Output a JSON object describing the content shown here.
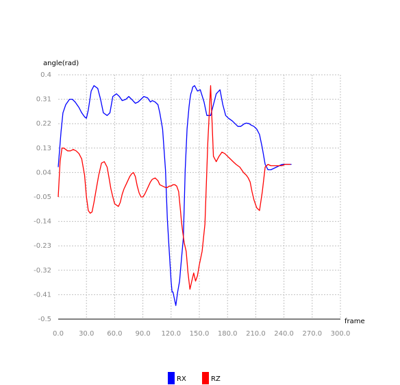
{
  "chart_data": {
    "type": "line",
    "xlabel": "frame",
    "ylabel": "angle(rad)",
    "xlim": [
      0,
      300
    ],
    "ylim": [
      -0.5,
      0.4
    ],
    "xticks": [
      "0.0",
      "30.0",
      "60.0",
      "90.0",
      "120.0",
      "150.0",
      "180.0",
      "210.0",
      "240.0",
      "270.0",
      "300.0"
    ],
    "yticks": [
      "0.4",
      "0.31",
      "0.22",
      "0.13",
      "0.04",
      "-0.05",
      "-0.14",
      "-0.23",
      "-0.32",
      "-0.41",
      "-0.5"
    ],
    "grid": true,
    "legend_position": "bottom-center",
    "series": [
      {
        "name": "RX",
        "color": "#0000ff",
        "x": [
          0,
          3,
          5,
          8,
          12,
          15,
          18,
          22,
          25,
          28,
          30,
          32,
          35,
          38,
          42,
          45,
          48,
          52,
          55,
          58,
          62,
          65,
          68,
          72,
          75,
          78,
          82,
          85,
          88,
          91,
          95,
          98,
          100,
          103,
          106,
          108,
          111,
          114,
          116,
          118,
          120,
          121,
          122,
          125,
          127,
          129,
          130,
          131,
          133,
          135,
          137,
          139,
          140,
          141,
          142,
          143,
          145,
          148,
          151,
          155,
          158,
          162,
          165,
          168,
          172,
          175,
          178,
          181,
          185,
          188,
          191,
          194,
          196,
          198,
          200,
          203,
          205,
          208,
          211,
          214,
          217,
          220,
          223,
          226,
          229,
          232,
          235,
          238,
          240,
          242,
          245,
          248
        ],
        "y": [
          0.06,
          0.19,
          0.26,
          0.29,
          0.31,
          0.31,
          0.3,
          0.28,
          0.26,
          0.245,
          0.24,
          0.27,
          0.34,
          0.36,
          0.35,
          0.31,
          0.26,
          0.25,
          0.26,
          0.32,
          0.33,
          0.32,
          0.305,
          0.31,
          0.32,
          0.31,
          0.295,
          0.3,
          0.31,
          0.32,
          0.315,
          0.3,
          0.305,
          0.3,
          0.29,
          0.26,
          0.2,
          0.05,
          -0.13,
          -0.25,
          -0.36,
          -0.4,
          -0.4,
          -0.45,
          -0.4,
          -0.36,
          -0.32,
          -0.28,
          -0.2,
          0.05,
          0.2,
          0.28,
          0.31,
          0.33,
          0.34,
          0.355,
          0.36,
          0.34,
          0.345,
          0.3,
          0.25,
          0.25,
          0.29,
          0.33,
          0.345,
          0.29,
          0.25,
          0.24,
          0.23,
          0.22,
          0.21,
          0.21,
          0.215,
          0.22,
          0.222,
          0.22,
          0.215,
          0.21,
          0.2,
          0.18,
          0.13,
          0.07,
          0.05,
          0.05,
          0.055,
          0.06,
          0.065,
          0.07,
          0.07,
          0.07,
          0.07,
          0.07
        ]
      },
      {
        "name": "RZ",
        "color": "#ff0000",
        "x": [
          0,
          2,
          4,
          6,
          8,
          10,
          13,
          16,
          19,
          22,
          25,
          28,
          30,
          32,
          34,
          36,
          38,
          40,
          43,
          46,
          49,
          52,
          54,
          56,
          58,
          60,
          62,
          64,
          66,
          68,
          70,
          72,
          74,
          76,
          78,
          80,
          82,
          84,
          86,
          88,
          90,
          92,
          94,
          96,
          98,
          100,
          103,
          106,
          108,
          111,
          114,
          116,
          118,
          120,
          122,
          124,
          126,
          128,
          130,
          131,
          132,
          134,
          136,
          138,
          140,
          142,
          144,
          146,
          148,
          150,
          153,
          156,
          159,
          162,
          165,
          168,
          171,
          174,
          177,
          180,
          183,
          186,
          189,
          191,
          193,
          195,
          197,
          200,
          202,
          204,
          206,
          208,
          211,
          214,
          217,
          220,
          223,
          226,
          229,
          232,
          235,
          238,
          241,
          244,
          247
        ],
        "y": [
          -0.05,
          0.08,
          0.13,
          0.13,
          0.125,
          0.12,
          0.12,
          0.125,
          0.12,
          0.11,
          0.09,
          0.03,
          -0.05,
          -0.1,
          -0.11,
          -0.105,
          -0.07,
          -0.03,
          0.03,
          0.075,
          0.08,
          0.06,
          0.02,
          -0.02,
          -0.05,
          -0.075,
          -0.08,
          -0.085,
          -0.07,
          -0.04,
          -0.02,
          -0.005,
          0.01,
          0.025,
          0.035,
          0.04,
          0.025,
          -0.01,
          -0.035,
          -0.05,
          -0.05,
          -0.04,
          -0.025,
          -0.01,
          0.005,
          0.015,
          0.02,
          0.01,
          -0.005,
          -0.01,
          -0.015,
          -0.015,
          -0.01,
          -0.01,
          -0.005,
          -0.005,
          -0.01,
          -0.03,
          -0.1,
          -0.14,
          -0.17,
          -0.22,
          -0.25,
          -0.33,
          -0.39,
          -0.36,
          -0.33,
          -0.36,
          -0.34,
          -0.3,
          -0.25,
          -0.15,
          0.15,
          0.36,
          0.1,
          0.08,
          0.1,
          0.115,
          0.11,
          0.1,
          0.09,
          0.08,
          0.07,
          0.065,
          0.06,
          0.05,
          0.04,
          0.03,
          0.02,
          0.005,
          -0.03,
          -0.06,
          -0.09,
          -0.1,
          -0.03,
          0.06,
          0.07,
          0.065,
          0.065,
          0.065,
          0.065,
          0.065,
          0.07,
          0.07,
          0.07
        ]
      }
    ]
  }
}
